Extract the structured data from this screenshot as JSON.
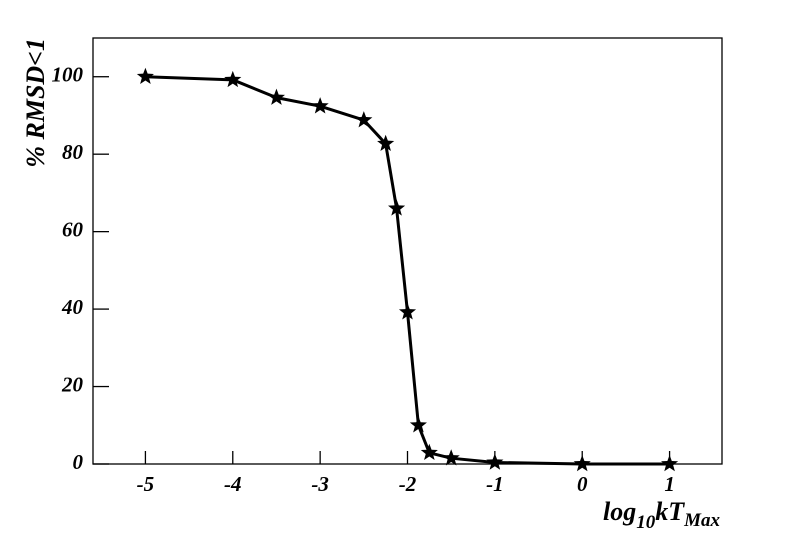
{
  "chart_data": {
    "type": "line",
    "x_label": [
      "log",
      "10",
      "kT",
      "Max"
    ],
    "y_label": "% RMSD<1",
    "x": [
      -5,
      -4,
      -3.5,
      -3,
      -2.5,
      -2.25,
      -2.125,
      -2,
      -1.875,
      -1.75,
      -1.5,
      -1,
      0,
      1
    ],
    "series": [
      {
        "color": "#000000",
        "marker": "star",
        "values": [
          100,
          99.2,
          94.6,
          92.4,
          88.8,
          82.7,
          66,
          39.2,
          10,
          2.9,
          1.5,
          0.4,
          0,
          0
        ]
      }
    ],
    "xlim": [
      -5.6,
      1.6
    ],
    "ylim": [
      0,
      110
    ],
    "xticks": [
      -5,
      -4,
      -3,
      -2,
      -1,
      0,
      1
    ],
    "yticks": [
      0,
      20,
      40,
      60,
      80,
      100
    ]
  }
}
